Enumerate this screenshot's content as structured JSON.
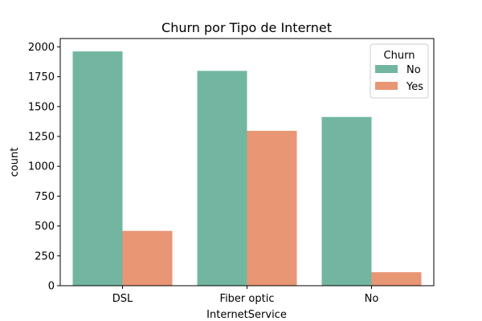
{
  "chart_data": {
    "type": "bar",
    "title": "Churn por Tipo de Internet",
    "xlabel": "InternetService",
    "ylabel": "count",
    "categories": [
      "DSL",
      "Fiber optic",
      "No"
    ],
    "series": [
      {
        "name": "No",
        "values": [
          1962,
          1799,
          1413
        ],
        "color": "#72b6a1"
      },
      {
        "name": "Yes",
        "values": [
          459,
          1297,
          113
        ],
        "color": "#e99675"
      }
    ],
    "ylim": [
      0,
      2070
    ],
    "yticks": [
      0,
      250,
      500,
      750,
      1000,
      1250,
      1500,
      1750,
      2000
    ],
    "legend": {
      "title": "Churn",
      "placement": "top-right"
    },
    "grid": false
  }
}
